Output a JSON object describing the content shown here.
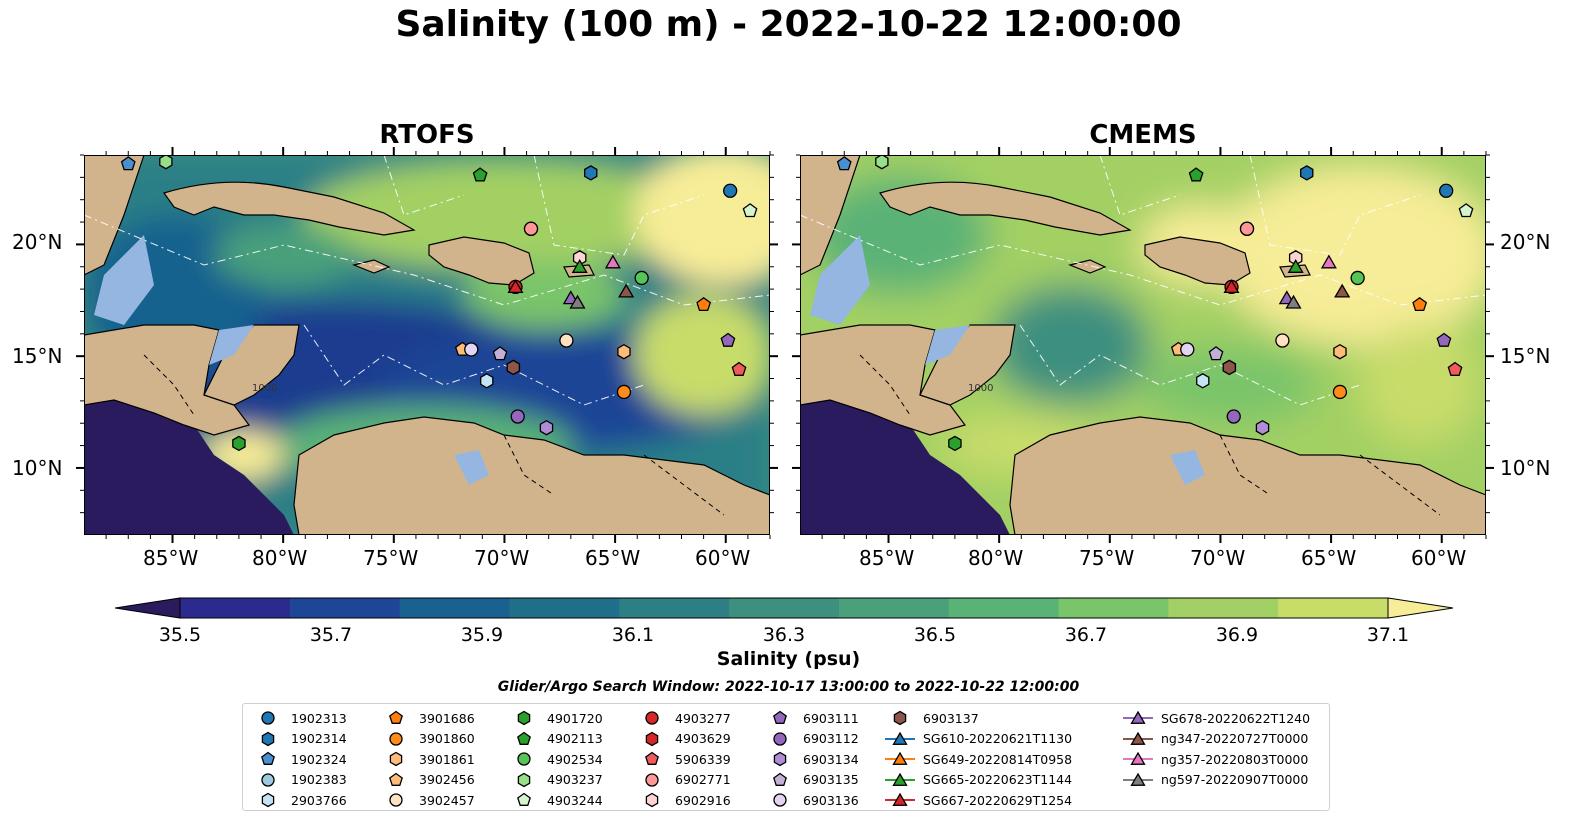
{
  "title": "Salinity (100 m) - 2022-10-22 12:00:00",
  "panels": [
    {
      "id": "rtofs",
      "title": "RTOFS"
    },
    {
      "id": "cmems",
      "title": "CMEMS"
    }
  ],
  "lat_labels": [
    "20°N",
    "15°N",
    "10°N"
  ],
  "lon_labels": [
    "85°W",
    "80°W",
    "75°W",
    "70°W",
    "65°W",
    "60°W"
  ],
  "bathymetry_label": "1000",
  "colorbar": {
    "label": "Salinity (psu)",
    "ticks": [
      "35.5",
      "35.7",
      "35.9",
      "36.1",
      "36.3",
      "36.5",
      "36.7",
      "36.9",
      "37.1"
    ],
    "range": [
      35.5,
      37.1
    ],
    "colors": [
      "#2a1b5e",
      "#2c2a8c",
      "#1f4596",
      "#19628f",
      "#1f6f8b",
      "#2e7f85",
      "#3d8f7f",
      "#4aa07a",
      "#5ab276",
      "#7ac46a",
      "#a3d064",
      "#c8dc6a",
      "#f7ec97"
    ]
  },
  "search_window": "Glider/Argo Search Window: 2022-10-17 13:00:00 to 2022-10-22 12:00:00",
  "legend": [
    {
      "label": "1902313",
      "marker": "circle",
      "color": "#1f77b4"
    },
    {
      "label": "1902314",
      "marker": "hexagon",
      "color": "#1f77b4"
    },
    {
      "label": "1902324",
      "marker": "pentagon",
      "color": "#4a8fd0"
    },
    {
      "label": "1902383",
      "marker": "circle",
      "color": "#9ecae1"
    },
    {
      "label": "2903766",
      "marker": "hexagon",
      "color": "#c6e2f5"
    },
    {
      "label": "3901686",
      "marker": "pentagon",
      "color": "#ff7f0e"
    },
    {
      "label": "3901860",
      "marker": "circle",
      "color": "#ff8c1a"
    },
    {
      "label": "3901861",
      "marker": "hexagon",
      "color": "#ffbb78"
    },
    {
      "label": "3902456",
      "marker": "pentagon",
      "color": "#ffbb78"
    },
    {
      "label": "3902457",
      "marker": "circle",
      "color": "#ffe2c2"
    },
    {
      "label": "4901720",
      "marker": "hexagon",
      "color": "#2ca02c"
    },
    {
      "label": "4902113",
      "marker": "pentagon",
      "color": "#2ca02c"
    },
    {
      "label": "4902534",
      "marker": "circle",
      "color": "#57c457"
    },
    {
      "label": "4903237",
      "marker": "hexagon",
      "color": "#98df8a"
    },
    {
      "label": "4903244",
      "marker": "pentagon",
      "color": "#d5f5cf"
    },
    {
      "label": "4903277",
      "marker": "circle",
      "color": "#d62728"
    },
    {
      "label": "4903629",
      "marker": "hexagon",
      "color": "#d62728"
    },
    {
      "label": "5906339",
      "marker": "pentagon",
      "color": "#f05a5a"
    },
    {
      "label": "6902771",
      "marker": "circle",
      "color": "#ff9896"
    },
    {
      "label": "6902916",
      "marker": "hexagon",
      "color": "#ffd3d2"
    },
    {
      "label": "6903111",
      "marker": "pentagon",
      "color": "#9467bd"
    },
    {
      "label": "6903112",
      "marker": "circle",
      "color": "#9467bd"
    },
    {
      "label": "6903134",
      "marker": "hexagon",
      "color": "#b08bd6"
    },
    {
      "label": "6903135",
      "marker": "pentagon",
      "color": "#c5b0d5"
    },
    {
      "label": "6903136",
      "marker": "circle",
      "color": "#e3d5f2"
    },
    {
      "label": "6903137",
      "marker": "hexagon",
      "color": "#8c564b"
    },
    {
      "label": "SG610-20220621T1130",
      "marker": "triangle-line",
      "color": "#1f77b4"
    },
    {
      "label": "SG649-20220814T0958",
      "marker": "triangle-line",
      "color": "#ff7f0e"
    },
    {
      "label": "SG665-20220623T1144",
      "marker": "triangle-line",
      "color": "#2ca02c"
    },
    {
      "label": "SG667-20220629T1254",
      "marker": "triangle-line",
      "color": "#d62728"
    },
    {
      "label": "SG678-20220622T1240",
      "marker": "triangle-line",
      "color": "#9467bd"
    },
    {
      "label": "ng347-20220727T0000",
      "marker": "triangle-line",
      "color": "#8c564b"
    },
    {
      "label": "ng357-20220803T0000",
      "marker": "triangle-line",
      "color": "#e377c2"
    },
    {
      "label": "ng597-20220907T0000",
      "marker": "triangle-line",
      "color": "#7f7f7f"
    }
  ],
  "observations": [
    {
      "id": "1902313",
      "lon": -59.8,
      "lat": 22.4
    },
    {
      "id": "1902314",
      "lon": -66.1,
      "lat": 23.2
    },
    {
      "id": "1902324",
      "lon": -87.0,
      "lat": 23.6
    },
    {
      "id": "1902383",
      "lon": -68.8,
      "lat": 20.7
    },
    {
      "id": "2903766",
      "lon": -70.8,
      "lat": 13.9
    },
    {
      "id": "3901686",
      "lon": -61.0,
      "lat": 17.3
    },
    {
      "id": "3901860",
      "lon": -64.6,
      "lat": 13.4
    },
    {
      "id": "3901861",
      "lon": -64.6,
      "lat": 15.2
    },
    {
      "id": "3902456",
      "lon": -71.9,
      "lat": 15.3
    },
    {
      "id": "3902457",
      "lon": -67.2,
      "lat": 15.7
    },
    {
      "id": "4901720",
      "lon": -82.0,
      "lat": 11.1
    },
    {
      "id": "4902113",
      "lon": -71.1,
      "lat": 23.1
    },
    {
      "id": "4902534",
      "lon": -63.8,
      "lat": 18.5
    },
    {
      "id": "4903237",
      "lon": -85.3,
      "lat": 23.7
    },
    {
      "id": "4903244",
      "lon": -58.9,
      "lat": 21.5
    },
    {
      "id": "4903277",
      "lon": -69.5,
      "lat": 18.1
    },
    {
      "id": "4903629",
      "lon": -69.6,
      "lat": 14.5
    },
    {
      "id": "5906339",
      "lon": -59.4,
      "lat": 14.4
    },
    {
      "id": "6902771",
      "lon": -68.8,
      "lat": 20.7
    },
    {
      "id": "6902916",
      "lon": -66.6,
      "lat": 19.4
    },
    {
      "id": "6903111",
      "lon": -59.9,
      "lat": 15.7
    },
    {
      "id": "6903112",
      "lon": -69.4,
      "lat": 12.3
    },
    {
      "id": "6903134",
      "lon": -68.1,
      "lat": 11.8
    },
    {
      "id": "6903135",
      "lon": -70.2,
      "lat": 15.1
    },
    {
      "id": "6903136",
      "lon": -71.5,
      "lat": 15.3
    },
    {
      "id": "6903137",
      "lon": -69.6,
      "lat": 14.5
    },
    {
      "id": "SG665-20220623T1144",
      "lon": -66.6,
      "lat": 19.0
    },
    {
      "id": "SG667-20220629T1254",
      "lon": -69.5,
      "lat": 18.1
    },
    {
      "id": "SG678-20220622T1240",
      "lon": -67.0,
      "lat": 17.6
    },
    {
      "id": "ng347-20220727T0000",
      "lon": -64.5,
      "lat": 17.9
    },
    {
      "id": "ng357-20220803T0000",
      "lon": -65.1,
      "lat": 19.2
    },
    {
      "id": "ng597-20220907T0000",
      "lon": -66.7,
      "lat": 17.4
    }
  ]
}
